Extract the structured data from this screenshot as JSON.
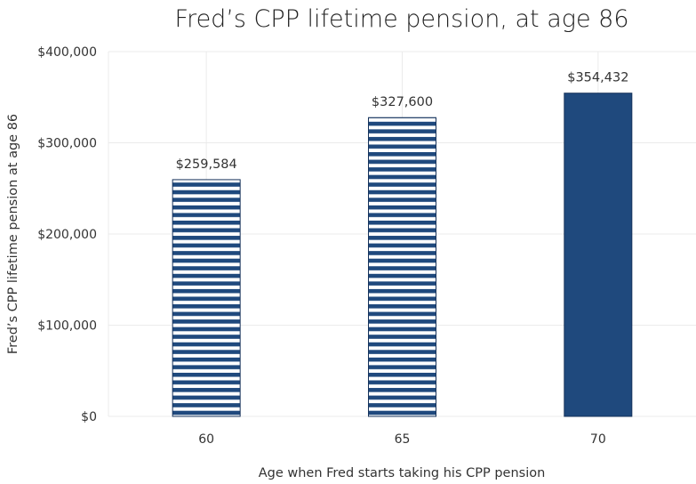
{
  "chart_data": {
    "type": "bar",
    "title": "Fred’s CPP lifetime pension, at age 86",
    "xlabel": "Age when Fred starts taking his CPP pension",
    "ylabel": "Fred’s CPP lifetime pension at age 86",
    "categories": [
      "60",
      "65",
      "70"
    ],
    "values": [
      259584,
      327600,
      354432
    ],
    "data_labels": [
      "$259,584",
      "$327,600",
      "$354,432"
    ],
    "bar_styles": [
      "striped",
      "striped",
      "solid"
    ],
    "ylim": [
      0,
      400000
    ],
    "yticks": [
      0,
      100000,
      200000,
      300000,
      400000
    ],
    "ytick_labels": [
      "$0",
      "$100,000",
      "$200,000",
      "$300,000",
      "$400,000"
    ],
    "grid": true,
    "legend": false,
    "colors": {
      "bar": "#1f497d",
      "stripe_gap": "#ffffff",
      "grid": "#ebebeb"
    }
  }
}
